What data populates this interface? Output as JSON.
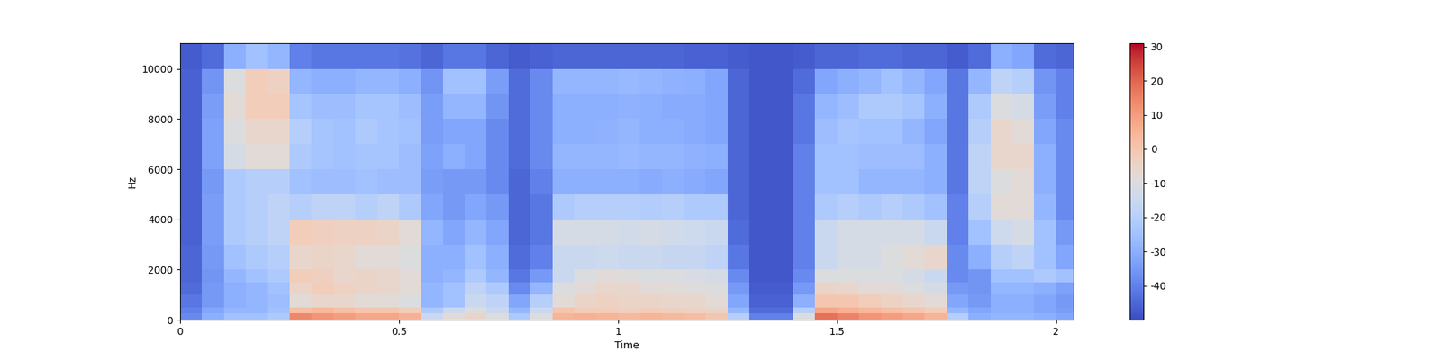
{
  "chart_data": {
    "type": "heatmap",
    "x_label": "Time",
    "y_label": "Hz",
    "xlim": [
      0,
      2.04
    ],
    "xticks": [
      0,
      0.5,
      1,
      1.5,
      2
    ],
    "ylim": [
      0,
      11025
    ],
    "yticks": [
      0,
      2000,
      4000,
      6000,
      8000,
      10000
    ],
    "time_edges": [
      0,
      0.05,
      0.1,
      0.15,
      0.2,
      0.25,
      0.3,
      0.35,
      0.4,
      0.45,
      0.5,
      0.55,
      0.6,
      0.65,
      0.7,
      0.75,
      0.8,
      0.85,
      0.9,
      0.95,
      1.0,
      1.05,
      1.1,
      1.15,
      1.2,
      1.25,
      1.3,
      1.35,
      1.4,
      1.45,
      1.5,
      1.55,
      1.6,
      1.65,
      1.7,
      1.75,
      1.8,
      1.85,
      1.9,
      1.95,
      2.0,
      2.04
    ],
    "frequency_edges": [
      0,
      250,
      500,
      1000,
      1500,
      2000,
      3000,
      4000,
      5000,
      6000,
      7000,
      8000,
      9000,
      10000,
      11025
    ],
    "cells_by_time": [
      [
        -38,
        -40,
        -42,
        -44,
        -45,
        -45,
        -46,
        -46,
        -46,
        -46,
        -46,
        -46,
        -46,
        -47
      ],
      [
        -30,
        -32,
        -35,
        -35,
        -36,
        -35,
        -34,
        -34,
        -35,
        -33,
        -33,
        -34,
        -36,
        -44
      ],
      [
        -25,
        -28,
        -30,
        -30,
        -28,
        -25,
        -22,
        -22,
        -22,
        -12,
        -10,
        -8,
        -10,
        -30
      ],
      [
        -25,
        -28,
        -28,
        -28,
        -25,
        -22,
        -20,
        -20,
        -20,
        -8,
        -6,
        -2,
        -2,
        -25
      ],
      [
        -22,
        -25,
        -26,
        -25,
        -22,
        -20,
        -18,
        -18,
        -20,
        -8,
        -6,
        -2,
        -4,
        -28
      ],
      [
        14,
        2,
        -8,
        -5,
        -2,
        -6,
        -2,
        -20,
        -25,
        -22,
        -20,
        -24,
        -28,
        -40
      ],
      [
        12,
        4,
        -6,
        -2,
        -3,
        -5,
        -3,
        -18,
        -26,
        -24,
        -24,
        -26,
        -30,
        -42
      ],
      [
        10,
        2,
        -6,
        -4,
        -6,
        -6,
        -4,
        -18,
        -26,
        -25,
        -25,
        -26,
        -30,
        -42
      ],
      [
        8,
        0,
        -8,
        -5,
        -5,
        -8,
        -4,
        -20,
        -25,
        -24,
        -22,
        -24,
        -28,
        -42
      ],
      [
        8,
        0,
        -8,
        -6,
        -6,
        -8,
        -5,
        -18,
        -26,
        -24,
        -24,
        -24,
        -28,
        -42
      ],
      [
        6,
        -2,
        -10,
        -8,
        -8,
        -10,
        -8,
        -22,
        -26,
        -26,
        -25,
        -26,
        -30,
        -43
      ],
      [
        -15,
        -22,
        -28,
        -28,
        -30,
        -30,
        -28,
        -32,
        -34,
        -33,
        -34,
        -34,
        -36,
        -45
      ],
      [
        -8,
        -15,
        -25,
        -25,
        -28,
        -30,
        -32,
        -35,
        -35,
        -30,
        -32,
        -28,
        -25,
        -42
      ],
      [
        -5,
        -10,
        -15,
        -18,
        -22,
        -25,
        -28,
        -32,
        -35,
        -32,
        -32,
        -28,
        -25,
        -42
      ],
      [
        -10,
        -15,
        -18,
        -22,
        -28,
        -30,
        -32,
        -35,
        -38,
        -38,
        -38,
        -36,
        -34,
        -45
      ],
      [
        -22,
        -28,
        -32,
        -38,
        -42,
        -44,
        -45,
        -45,
        -45,
        -44,
        -44,
        -44,
        -44,
        -47
      ],
      [
        -10,
        -15,
        -20,
        -28,
        -35,
        -40,
        -42,
        -42,
        -40,
        -38,
        -38,
        -38,
        -38,
        -46
      ],
      [
        5,
        0,
        -8,
        -10,
        -15,
        -15,
        -12,
        -22,
        -30,
        -28,
        -30,
        -30,
        -28,
        -45
      ],
      [
        6,
        -2,
        -5,
        -8,
        -10,
        -15,
        -12,
        -20,
        -30,
        -28,
        -30,
        -30,
        -28,
        -45
      ],
      [
        5,
        -2,
        -4,
        -6,
        -8,
        -14,
        -12,
        -20,
        -30,
        -28,
        -29,
        -30,
        -28,
        -45
      ],
      [
        4,
        -3,
        -5,
        -6,
        -9,
        -15,
        -13,
        -20,
        -30,
        -27,
        -28,
        -29,
        -27,
        -45
      ],
      [
        5,
        -2,
        -5,
        -8,
        -10,
        -15,
        -12,
        -21,
        -31,
        -28,
        -30,
        -30,
        -28,
        -45
      ],
      [
        4,
        -3,
        -6,
        -8,
        -10,
        -16,
        -13,
        -20,
        -30,
        -28,
        -30,
        -31,
        -29,
        -45
      ],
      [
        3,
        -4,
        -6,
        -9,
        -11,
        -16,
        -14,
        -22,
        -31,
        -29,
        -31,
        -31,
        -30,
        -46
      ],
      [
        0,
        -5,
        -8,
        -10,
        -12,
        -18,
        -15,
        -22,
        -32,
        -30,
        -32,
        -32,
        -32,
        -46
      ],
      [
        -20,
        -28,
        -32,
        -35,
        -38,
        -42,
        -44,
        -45,
        -45,
        -45,
        -45,
        -45,
        -45,
        -47
      ],
      [
        -40,
        -44,
        -46,
        -47,
        -48,
        -48,
        -48,
        -48,
        -48,
        -48,
        -48,
        -48,
        -48,
        -48
      ],
      [
        -40,
        -44,
        -46,
        -47,
        -48,
        -48,
        -48,
        -48,
        -48,
        -48,
        -48,
        -48,
        -48,
        -48
      ],
      [
        -10,
        -20,
        -30,
        -35,
        -38,
        -40,
        -40,
        -40,
        -40,
        -40,
        -42,
        -42,
        -44,
        -47
      ],
      [
        18,
        8,
        0,
        -5,
        -10,
        -15,
        -15,
        -22,
        -25,
        -25,
        -26,
        -28,
        -32,
        -45
      ],
      [
        15,
        6,
        0,
        -6,
        -10,
        -12,
        -12,
        -20,
        -25,
        -25,
        -24,
        -26,
        -30,
        -45
      ],
      [
        12,
        4,
        -2,
        -8,
        -10,
        -12,
        -12,
        -22,
        -28,
        -26,
        -25,
        -22,
        -28,
        -44
      ],
      [
        10,
        2,
        -4,
        -8,
        -10,
        -10,
        -12,
        -20,
        -28,
        -26,
        -25,
        -22,
        -25,
        -44
      ],
      [
        8,
        0,
        -6,
        -10,
        -12,
        -8,
        -12,
        -22,
        -28,
        -26,
        -28,
        -24,
        -28,
        -45
      ],
      [
        5,
        -2,
        -8,
        -12,
        -15,
        -6,
        -15,
        -25,
        -30,
        -30,
        -32,
        -30,
        -32,
        -45
      ],
      [
        -20,
        -28,
        -32,
        -35,
        -38,
        -38,
        -40,
        -40,
        -42,
        -42,
        -42,
        -42,
        -42,
        -47
      ],
      [
        -30,
        -32,
        -35,
        -36,
        -36,
        -30,
        -25,
        -20,
        -18,
        -18,
        -20,
        -22,
        -28,
        -44
      ],
      [
        -28,
        -30,
        -30,
        -28,
        -25,
        -20,
        -14,
        -8,
        -10,
        -6,
        -6,
        -10,
        -18,
        -30
      ],
      [
        -28,
        -30,
        -30,
        -28,
        -25,
        -18,
        -12,
        -8,
        -8,
        -6,
        -8,
        -12,
        -20,
        -32
      ],
      [
        -30,
        -32,
        -32,
        -30,
        -22,
        -25,
        -25,
        -28,
        -30,
        -30,
        -32,
        -34,
        -36,
        -44
      ],
      [
        -32,
        -34,
        -35,
        -33,
        -25,
        -32,
        -35,
        -38,
        -38,
        -38,
        -38,
        -40,
        -40,
        -45
      ]
    ],
    "colorbar": {
      "range": [
        -50,
        31
      ],
      "ticks": [
        -40,
        -30,
        -20,
        -10,
        0,
        10,
        20,
        30
      ]
    }
  }
}
